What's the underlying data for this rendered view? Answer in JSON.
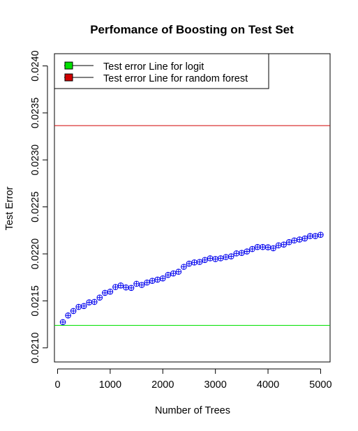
{
  "chart_data": {
    "type": "scatter",
    "title": "Perfomance of Boosting on Test Set",
    "xlabel": "Number of Trees",
    "ylabel": "Test Error",
    "xlim": [
      -60,
      5180
    ],
    "ylim": [
      0.02085,
      0.02413
    ],
    "x_ticks": [
      0,
      1000,
      2000,
      3000,
      4000,
      5000
    ],
    "y_ticks": [
      0.021,
      0.0215,
      0.022,
      0.0225,
      0.023,
      0.0235,
      0.024
    ],
    "x_tick_labels": [
      "0",
      "1000",
      "2000",
      "3000",
      "4000",
      "5000"
    ],
    "y_tick_labels": [
      "0.0210",
      "0.0215",
      "0.0220",
      "0.0225",
      "0.0230",
      "0.0235",
      "0.0240"
    ],
    "grid": false,
    "legend_position": "top-left",
    "reference_lines": [
      {
        "name": "Test error Line for logit",
        "y": 0.02124,
        "color": "#00e000"
      },
      {
        "name": "Test error Line for random forest",
        "y": 0.023365,
        "color": "#d00000"
      }
    ],
    "series": [
      {
        "color": "#0000ee",
        "marker": "circle-plus",
        "points": [
          [
            100,
            0.021274
          ],
          [
            200,
            0.021345
          ],
          [
            300,
            0.021392
          ],
          [
            400,
            0.021436
          ],
          [
            500,
            0.021445
          ],
          [
            600,
            0.021484
          ],
          [
            700,
            0.021489
          ],
          [
            800,
            0.021535
          ],
          [
            900,
            0.021585
          ],
          [
            1000,
            0.021598
          ],
          [
            1100,
            0.021647
          ],
          [
            1200,
            0.021664
          ],
          [
            1300,
            0.021643
          ],
          [
            1400,
            0.021638
          ],
          [
            1500,
            0.021682
          ],
          [
            1600,
            0.021669
          ],
          [
            1700,
            0.021695
          ],
          [
            1800,
            0.021713
          ],
          [
            1900,
            0.021726
          ],
          [
            2000,
            0.021739
          ],
          [
            2100,
            0.021776
          ],
          [
            2200,
            0.021792
          ],
          [
            2300,
            0.02181
          ],
          [
            2400,
            0.021862
          ],
          [
            2500,
            0.021896
          ],
          [
            2600,
            0.021909
          ],
          [
            2700,
            0.021914
          ],
          [
            2800,
            0.021935
          ],
          [
            2900,
            0.021953
          ],
          [
            3000,
            0.021945
          ],
          [
            3100,
            0.021953
          ],
          [
            3200,
            0.021966
          ],
          [
            3300,
            0.021974
          ],
          [
            3400,
            0.022005
          ],
          [
            3500,
            0.02201
          ],
          [
            3600,
            0.022026
          ],
          [
            3700,
            0.022052
          ],
          [
            3800,
            0.022073
          ],
          [
            3900,
            0.022073
          ],
          [
            4000,
            0.02207
          ],
          [
            4100,
            0.02206
          ],
          [
            4200,
            0.022091
          ],
          [
            4300,
            0.022099
          ],
          [
            4400,
            0.022125
          ],
          [
            4500,
            0.022143
          ],
          [
            4600,
            0.022153
          ],
          [
            4700,
            0.022164
          ],
          [
            4800,
            0.02219
          ],
          [
            4900,
            0.02219
          ],
          [
            5000,
            0.022203
          ]
        ]
      }
    ]
  }
}
